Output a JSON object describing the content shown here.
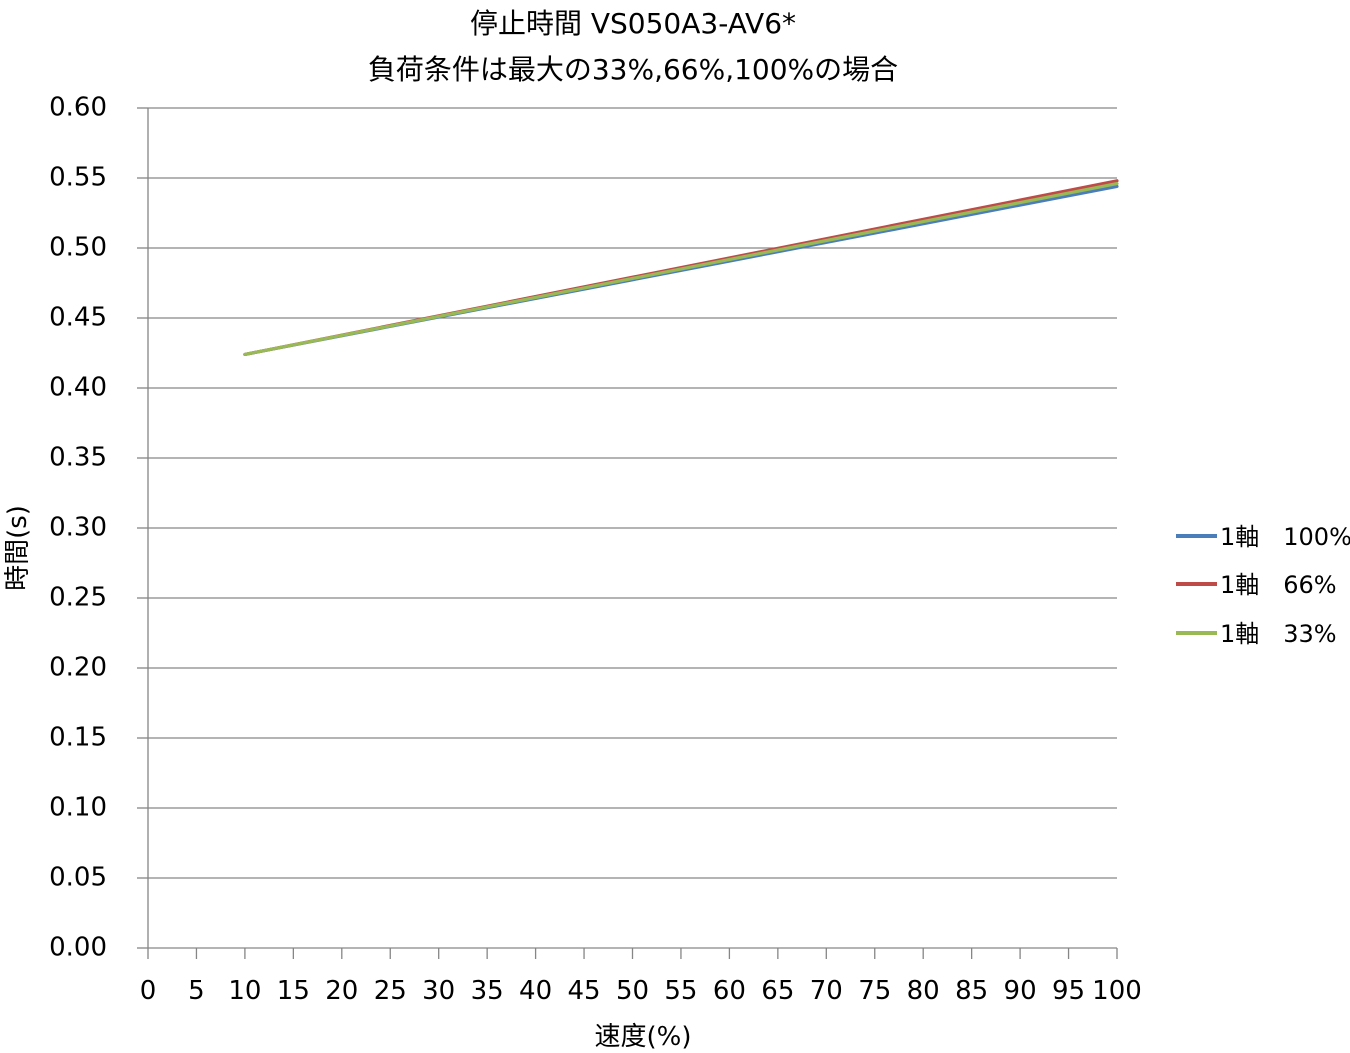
{
  "chart_data": {
    "type": "line",
    "title": "停止時間 VS050A3-AV6*",
    "subtitle": "負荷条件は最大の33%,66%,100%の場合",
    "xlabel": "速度(%)",
    "ylabel": "時間(s)",
    "xlim": [
      0,
      100
    ],
    "ylim": [
      0,
      0.6
    ],
    "x_ticks": [
      "0",
      "5",
      "10",
      "15",
      "20",
      "25",
      "30",
      "35",
      "40",
      "45",
      "50",
      "55",
      "60",
      "65",
      "70",
      "75",
      "80",
      "85",
      "90",
      "95",
      "100"
    ],
    "y_ticks": [
      "0.00",
      "0.05",
      "0.10",
      "0.15",
      "0.20",
      "0.25",
      "0.30",
      "0.35",
      "0.40",
      "0.45",
      "0.50",
      "0.55",
      "0.60"
    ],
    "grid": "horizontal",
    "legend_position": "right",
    "series": [
      {
        "name": "1軸　100%",
        "color": "#4a7ebb",
        "x": [
          10,
          100
        ],
        "y": [
          0.424,
          0.544
        ]
      },
      {
        "name": "1軸　66%",
        "color": "#be4b48",
        "x": [
          10,
          100
        ],
        "y": [
          0.424,
          0.548
        ]
      },
      {
        "name": "1軸　33%",
        "color": "#98b954",
        "x": [
          10,
          100
        ],
        "y": [
          0.424,
          0.546
        ]
      }
    ]
  }
}
